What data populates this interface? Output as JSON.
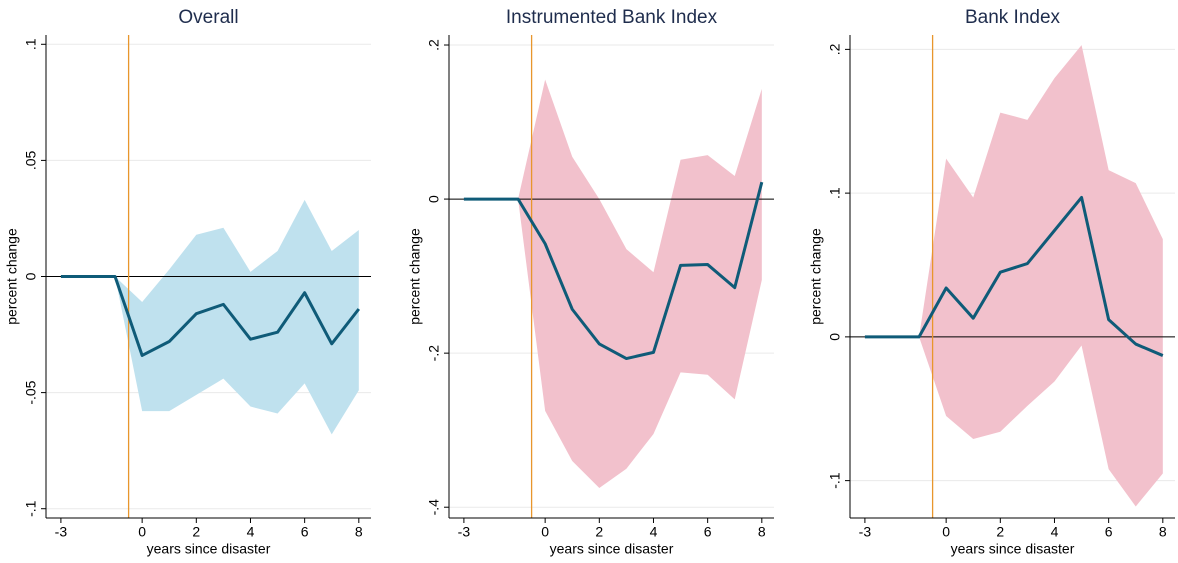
{
  "chart_data": [
    {
      "type": "line",
      "title": "Overall",
      "xlabel": "years since disaster",
      "ylabel": "percent change",
      "x": [
        -3,
        -2,
        -1,
        0,
        1,
        2,
        3,
        4,
        5,
        6,
        7,
        8
      ],
      "values": [
        0,
        0,
        0,
        -0.034,
        -0.028,
        -0.016,
        -0.012,
        -0.027,
        -0.024,
        -0.007,
        -0.029,
        -0.014
      ],
      "lower": [
        null,
        null,
        0,
        -0.058,
        -0.058,
        -0.051,
        -0.044,
        -0.056,
        -0.059,
        -0.046,
        -0.068,
        -0.049
      ],
      "upper": [
        null,
        null,
        0,
        -0.011,
        0.003,
        0.018,
        0.021,
        0.002,
        0.011,
        0.033,
        0.011,
        0.02
      ],
      "line_color": "#0f5b78",
      "band_color": "#bfe1ee",
      "vline": -0.5,
      "vline_color": "#e8962c",
      "hline": 0,
      "grid": true,
      "xlim": [
        -3.55,
        8.45
      ],
      "ylim": [
        -0.104,
        0.104
      ],
      "xticks": [
        -3,
        0,
        2,
        4,
        6,
        8
      ],
      "yticks": [
        {
          "value": -0.1,
          "label": "-.1"
        },
        {
          "value": -0.05,
          "label": "-.05"
        },
        0,
        {
          "value": 0.05,
          "label": ".05"
        },
        {
          "value": 0.1,
          "label": ".1"
        }
      ]
    },
    {
      "type": "line",
      "title": "Instrumented Bank Index",
      "xlabel": "years since disaster",
      "ylabel": "percent change",
      "x": [
        -3,
        -2,
        -1,
        0,
        1,
        2,
        3,
        4,
        5,
        6,
        7,
        8
      ],
      "values": [
        0,
        0,
        0,
        -0.058,
        -0.143,
        -0.188,
        -0.207,
        -0.199,
        -0.086,
        -0.085,
        -0.115,
        0.022
      ],
      "lower": [
        null,
        null,
        0,
        -0.275,
        -0.34,
        -0.375,
        -0.35,
        -0.305,
        -0.225,
        -0.228,
        -0.26,
        -0.105
      ],
      "upper": [
        null,
        null,
        0,
        0.155,
        0.055,
        0.0,
        -0.065,
        -0.095,
        0.051,
        0.057,
        0.03,
        0.143
      ],
      "line_color": "#0f5b78",
      "band_color": "#f2c1cc",
      "vline": -0.5,
      "vline_color": "#e8962c",
      "hline": 0,
      "grid": true,
      "xlim": [
        -3.55,
        8.45
      ],
      "ylim": [
        -0.414,
        0.213
      ],
      "xticks": [
        -3,
        0,
        2,
        4,
        6,
        8
      ],
      "yticks": [
        {
          "value": -0.4,
          "label": "-.4"
        },
        {
          "value": -0.2,
          "label": "-.2"
        },
        0,
        {
          "value": 0.2,
          "label": ".2"
        }
      ]
    },
    {
      "type": "line",
      "title": "Bank Index",
      "xlabel": "years since disaster",
      "ylabel": "percent change",
      "x": [
        -3,
        -2,
        -1,
        0,
        1,
        2,
        3,
        4,
        5,
        6,
        7,
        8
      ],
      "values": [
        0,
        0,
        0,
        0.034,
        0.013,
        0.045,
        0.051,
        0.074,
        0.097,
        0.012,
        -0.005,
        -0.013
      ],
      "lower": [
        null,
        null,
        0,
        -0.055,
        -0.071,
        -0.066,
        -0.048,
        -0.031,
        -0.006,
        -0.092,
        -0.118,
        -0.095
      ],
      "upper": [
        null,
        null,
        0,
        0.124,
        0.097,
        0.156,
        0.151,
        0.18,
        0.203,
        0.116,
        0.107,
        0.068
      ],
      "line_color": "#0f5b78",
      "band_color": "#f2c1cc",
      "vline": -0.5,
      "vline_color": "#e8962c",
      "hline": 0,
      "grid": true,
      "xlim": [
        -3.55,
        8.45
      ],
      "ylim": [
        -0.126,
        0.21
      ],
      "xticks": [
        -3,
        0,
        2,
        4,
        6,
        8
      ],
      "yticks": [
        {
          "value": -0.1,
          "label": "-.1"
        },
        0,
        {
          "value": 0.1,
          "label": ".1"
        },
        {
          "value": 0.2,
          "label": ".2"
        }
      ]
    }
  ]
}
